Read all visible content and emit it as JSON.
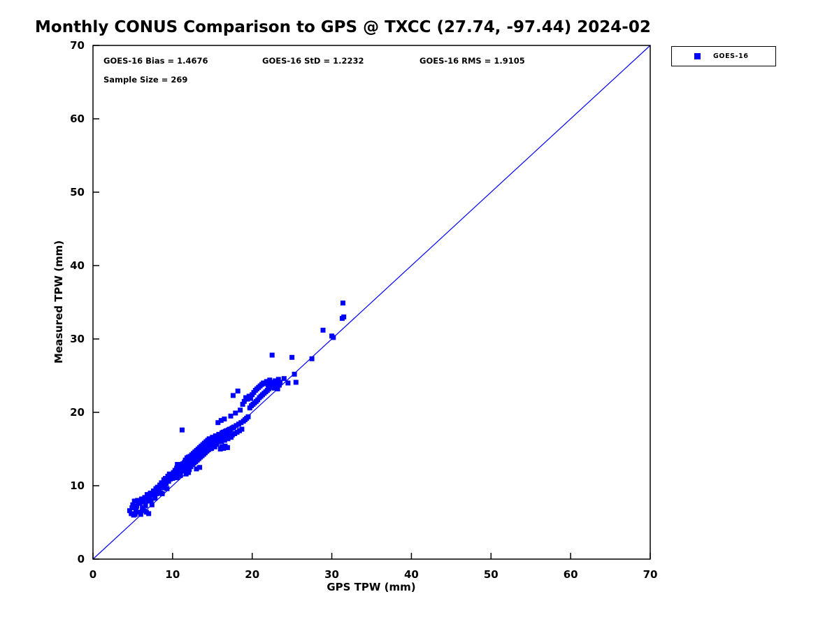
{
  "title": "Monthly CONUS Comparison to GPS @ TXCC (27.74, -97.44) 2024-02",
  "stats": {
    "bias_text": "GOES-16 Bias = 1.4676",
    "std_text": "GOES-16 StD = 1.2232",
    "rms_text": "GOES-16 RMS = 1.9105",
    "sample_text": "Sample Size = 269"
  },
  "legend": {
    "label": "GOES-16",
    "marker_color": "#0000ff"
  },
  "chart_data": {
    "type": "scatter",
    "title": "Monthly CONUS Comparison to GPS @ TXCC (27.74, -97.44) 2024-02",
    "xlabel": "GPS TPW (mm)",
    "ylabel": "Measured TPW (mm)",
    "xlim": [
      0,
      70
    ],
    "ylim": [
      0,
      70
    ],
    "xticks": [
      0,
      10,
      20,
      30,
      40,
      50,
      60,
      70
    ],
    "yticks": [
      0,
      10,
      20,
      30,
      40,
      50,
      60,
      70
    ],
    "grid": false,
    "legend_position": "outside-top-right",
    "reference_line": {
      "from": [
        0,
        0
      ],
      "to": [
        70,
        70
      ],
      "color": "#0000ff"
    },
    "stats": {
      "bias": 1.4676,
      "std": 1.2232,
      "rms": 1.9105,
      "sample_size": 269
    },
    "series": [
      {
        "name": "GOES-16",
        "color": "#0000ff",
        "marker": "square",
        "points": [
          [
            4.6,
            6.6
          ],
          [
            4.8,
            6.2
          ],
          [
            5.0,
            7.4
          ],
          [
            5.1,
            6.0
          ],
          [
            5.2,
            7.9
          ],
          [
            5.4,
            6.7
          ],
          [
            5.5,
            7.2
          ],
          [
            5.6,
            8.0
          ],
          [
            5.8,
            6.4
          ],
          [
            5.9,
            7.6
          ],
          [
            6.0,
            6.1
          ],
          [
            6.1,
            8.2
          ],
          [
            6.2,
            7.0
          ],
          [
            6.3,
            7.8
          ],
          [
            6.4,
            6.6
          ],
          [
            6.5,
            8.4
          ],
          [
            6.6,
            7.3
          ],
          [
            6.8,
            8.8
          ],
          [
            6.9,
            7.9
          ],
          [
            7.0,
            6.2
          ],
          [
            7.1,
            8.5
          ],
          [
            7.2,
            9.0
          ],
          [
            7.3,
            8.0
          ],
          [
            7.5,
            8.7
          ],
          [
            7.6,
            9.3
          ],
          [
            7.8,
            8.3
          ],
          [
            7.9,
            9.6
          ],
          [
            8.0,
            8.9
          ],
          [
            8.1,
            9.8
          ],
          [
            8.2,
            9.2
          ],
          [
            8.3,
            9.5
          ],
          [
            8.4,
            10.1
          ],
          [
            8.5,
            9.0
          ],
          [
            8.6,
            10.4
          ],
          [
            8.8,
            9.7
          ],
          [
            8.9,
            10.8
          ],
          [
            9.0,
            10.0
          ],
          [
            9.1,
            11.0
          ],
          [
            9.2,
            10.3
          ],
          [
            9.4,
            11.3
          ],
          [
            9.5,
            10.6
          ],
          [
            9.6,
            11.6
          ],
          [
            9.7,
            10.9
          ],
          [
            9.8,
            11.2
          ],
          [
            10.0,
            11.0
          ],
          [
            10.1,
            11.8
          ],
          [
            10.2,
            11.2
          ],
          [
            10.3,
            12.1
          ],
          [
            10.4,
            11.5
          ],
          [
            10.5,
            12.4
          ],
          [
            10.6,
            11.1
          ],
          [
            10.7,
            12.0
          ],
          [
            10.8,
            12.6
          ],
          [
            10.9,
            11.7
          ],
          [
            11.0,
            12.3
          ],
          [
            11.0,
            11.4
          ],
          [
            11.1,
            12.9
          ],
          [
            11.2,
            12.2
          ],
          [
            11.3,
            13.0
          ],
          [
            11.2,
            17.6
          ],
          [
            11.4,
            12.5
          ],
          [
            11.5,
            13.2
          ],
          [
            11.5,
            12.0
          ],
          [
            11.6,
            13.5
          ],
          [
            11.7,
            12.8
          ],
          [
            11.8,
            13.8
          ],
          [
            11.8,
            12.4
          ],
          [
            11.9,
            13.1
          ],
          [
            12.0,
            12.7
          ],
          [
            12.0,
            13.9
          ],
          [
            12.1,
            13.3
          ],
          [
            12.1,
            12.2
          ],
          [
            12.2,
            14.0
          ],
          [
            12.2,
            13.0
          ],
          [
            12.3,
            13.6
          ],
          [
            12.3,
            12.6
          ],
          [
            12.4,
            14.2
          ],
          [
            12.4,
            13.2
          ],
          [
            12.5,
            13.9
          ],
          [
            12.5,
            12.9
          ],
          [
            12.6,
            14.4
          ],
          [
            12.6,
            13.4
          ],
          [
            12.7,
            14.0
          ],
          [
            12.7,
            13.1
          ],
          [
            12.8,
            14.6
          ],
          [
            12.8,
            13.7
          ],
          [
            12.9,
            14.2
          ],
          [
            12.9,
            13.3
          ],
          [
            13.0,
            14.8
          ],
          [
            13.0,
            13.9
          ],
          [
            13.1,
            14.4
          ],
          [
            13.1,
            13.5
          ],
          [
            13.2,
            15.0
          ],
          [
            13.2,
            14.1
          ],
          [
            13.3,
            14.7
          ],
          [
            13.3,
            13.7
          ],
          [
            13.4,
            15.2
          ],
          [
            13.4,
            14.3
          ],
          [
            13.5,
            14.9
          ],
          [
            13.5,
            13.9
          ],
          [
            13.6,
            15.4
          ],
          [
            13.6,
            14.5
          ],
          [
            13.7,
            15.1
          ],
          [
            13.7,
            14.1
          ],
          [
            13.8,
            15.6
          ],
          [
            13.8,
            14.7
          ],
          [
            13.9,
            15.3
          ],
          [
            13.9,
            14.3
          ],
          [
            14.0,
            15.8
          ],
          [
            14.0,
            14.9
          ],
          [
            14.1,
            15.5
          ],
          [
            14.1,
            14.5
          ],
          [
            14.2,
            16.0
          ],
          [
            14.2,
            15.1
          ],
          [
            14.3,
            15.7
          ],
          [
            14.3,
            14.7
          ],
          [
            14.4,
            16.2
          ],
          [
            14.4,
            15.3
          ],
          [
            14.5,
            15.9
          ],
          [
            14.5,
            14.9
          ],
          [
            14.6,
            16.4
          ],
          [
            14.7,
            15.5
          ],
          [
            14.8,
            16.1
          ],
          [
            14.9,
            15.1
          ],
          [
            15.0,
            16.6
          ],
          [
            15.1,
            15.7
          ],
          [
            15.2,
            16.3
          ],
          [
            15.3,
            15.3
          ],
          [
            15.4,
            16.8
          ],
          [
            15.5,
            15.9
          ],
          [
            15.6,
            16.5
          ],
          [
            15.7,
            18.6
          ],
          [
            15.8,
            17.0
          ],
          [
            15.9,
            16.1
          ],
          [
            16.0,
            16.7
          ],
          [
            16.1,
            18.9
          ],
          [
            16.2,
            17.2
          ],
          [
            16.3,
            16.3
          ],
          [
            16.4,
            16.9
          ],
          [
            16.5,
            19.1
          ],
          [
            16.6,
            17.4
          ],
          [
            16.7,
            16.5
          ],
          [
            16.8,
            17.1
          ],
          [
            16.9,
            15.2
          ],
          [
            17.0,
            17.6
          ],
          [
            17.1,
            16.7
          ],
          [
            17.2,
            17.3
          ],
          [
            17.3,
            19.5
          ],
          [
            17.4,
            17.8
          ],
          [
            17.5,
            16.9
          ],
          [
            17.6,
            22.3
          ],
          [
            17.7,
            18.0
          ],
          [
            17.8,
            17.1
          ],
          [
            17.9,
            19.9
          ],
          [
            18.0,
            18.2
          ],
          [
            18.1,
            17.3
          ],
          [
            18.2,
            22.9
          ],
          [
            18.3,
            18.4
          ],
          [
            18.4,
            17.5
          ],
          [
            18.5,
            20.3
          ],
          [
            18.6,
            18.6
          ],
          [
            18.7,
            17.7
          ],
          [
            18.8,
            21.1
          ],
          [
            18.9,
            18.8
          ],
          [
            19.0,
            21.5
          ],
          [
            19.1,
            19.0
          ],
          [
            19.2,
            22.0
          ],
          [
            19.3,
            19.2
          ],
          [
            19.4,
            21.8
          ],
          [
            19.5,
            19.4
          ],
          [
            19.6,
            22.2
          ],
          [
            19.7,
            20.6
          ],
          [
            19.8,
            21.9
          ],
          [
            19.9,
            20.9
          ],
          [
            20.0,
            22.4
          ],
          [
            20.1,
            21.1
          ],
          [
            20.2,
            22.7
          ],
          [
            20.3,
            21.3
          ],
          [
            20.4,
            23.0
          ],
          [
            20.5,
            21.5
          ],
          [
            20.6,
            23.2
          ],
          [
            20.7,
            21.7
          ],
          [
            20.8,
            23.4
          ],
          [
            20.9,
            22.0
          ],
          [
            21.0,
            23.6
          ],
          [
            21.1,
            22.2
          ],
          [
            21.2,
            23.8
          ],
          [
            21.3,
            22.4
          ],
          [
            21.4,
            24.0
          ],
          [
            21.5,
            22.6
          ],
          [
            21.6,
            23.9
          ],
          [
            21.7,
            22.8
          ],
          [
            21.8,
            24.2
          ],
          [
            21.9,
            23.0
          ],
          [
            22.0,
            23.7
          ],
          [
            22.1,
            23.2
          ],
          [
            22.2,
            24.4
          ],
          [
            22.3,
            23.4
          ],
          [
            22.4,
            23.9
          ],
          [
            22.5,
            27.8
          ],
          [
            22.6,
            23.6
          ],
          [
            22.7,
            24.1
          ],
          [
            22.8,
            23.3
          ],
          [
            22.9,
            24.3
          ],
          [
            23.0,
            23.5
          ],
          [
            23.1,
            24.0
          ],
          [
            23.2,
            23.2
          ],
          [
            23.3,
            24.5
          ],
          [
            23.4,
            23.7
          ],
          [
            23.5,
            24.1
          ],
          [
            24.0,
            24.6
          ],
          [
            24.5,
            24.0
          ],
          [
            25.0,
            27.5
          ],
          [
            25.3,
            25.2
          ],
          [
            25.5,
            24.1
          ],
          [
            27.5,
            27.3
          ],
          [
            28.9,
            31.2
          ],
          [
            30.0,
            30.4
          ],
          [
            30.2,
            30.2
          ],
          [
            31.4,
            34.9
          ],
          [
            31.5,
            33.0
          ],
          [
            31.3,
            32.8
          ],
          [
            11.6,
            12.1
          ],
          [
            11.9,
            12.5
          ],
          [
            12.15,
            13.45
          ],
          [
            12.35,
            13.15
          ],
          [
            12.55,
            14.05
          ],
          [
            12.75,
            13.5
          ],
          [
            12.95,
            14.5
          ],
          [
            13.15,
            13.8
          ],
          [
            13.35,
            14.55
          ],
          [
            13.55,
            14.25
          ],
          [
            13.75,
            15.35
          ],
          [
            13.95,
            14.65
          ],
          [
            14.15,
            15.25
          ],
          [
            14.35,
            14.85
          ],
          [
            14.55,
            15.65
          ],
          [
            14.75,
            15.05
          ],
          [
            14.95,
            16.05
          ],
          [
            15.15,
            15.45
          ],
          [
            15.35,
            16.25
          ],
          [
            15.55,
            15.65
          ],
          [
            15.75,
            16.45
          ],
          [
            15.95,
            17.0
          ],
          [
            16.15,
            16.0
          ],
          [
            16.35,
            17.3
          ],
          [
            16.55,
            16.2
          ],
          [
            16.75,
            17.5
          ],
          [
            16.95,
            16.4
          ],
          [
            17.15,
            17.7
          ],
          [
            17.35,
            16.6
          ],
          [
            17.55,
            17.9
          ],
          [
            16.0,
            15.0
          ],
          [
            16.2,
            15.3
          ],
          [
            16.4,
            15.1
          ],
          [
            16.6,
            15.4
          ],
          [
            13.0,
            12.3
          ],
          [
            13.4,
            12.5
          ],
          [
            12.0,
            11.8
          ],
          [
            11.7,
            11.6
          ],
          [
            10.9,
            12.8
          ],
          [
            10.6,
            12.9
          ],
          [
            9.3,
            9.6
          ],
          [
            8.7,
            8.9
          ],
          [
            7.4,
            7.4
          ],
          [
            6.7,
            6.4
          ],
          [
            5.3,
            6.1
          ],
          [
            4.9,
            7.0
          ],
          [
            5.7,
            7.7
          ]
        ]
      }
    ]
  }
}
